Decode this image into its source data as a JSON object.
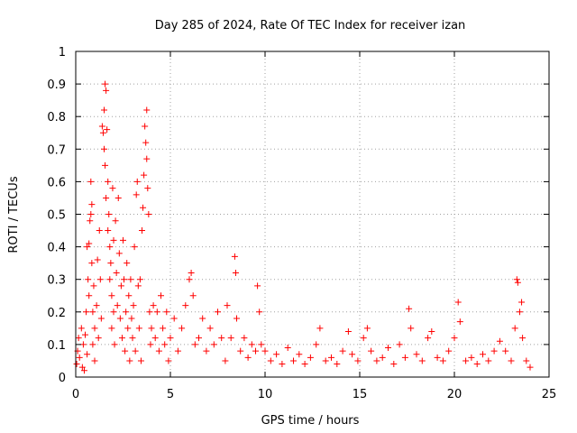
{
  "chart_data": {
    "type": "scatter",
    "title": "Day 285 of 2024, Rate Of TEC Index for receiver izan",
    "xlabel": "GPS time / hours",
    "ylabel": "ROTI / TECUs",
    "xlim": [
      0,
      25
    ],
    "ylim": [
      0,
      1
    ],
    "xticks": [
      0,
      5,
      10,
      15,
      20,
      25
    ],
    "xtick_labels": [
      "0",
      "5",
      "10",
      "15",
      "20",
      "25"
    ],
    "yticks": [
      0,
      0.1,
      0.2,
      0.3,
      0.4,
      0.5,
      0.6,
      0.7,
      0.8,
      0.9,
      1
    ],
    "ytick_labels": [
      "0",
      "0.1",
      "0.2",
      "0.3",
      "0.4",
      "0.5",
      "0.6",
      "0.7",
      "0.8",
      "0.9",
      "1"
    ],
    "grid": true,
    "marker": "plus",
    "series": [
      {
        "color": "#ff0000",
        "points": [
          [
            0.05,
            0.04
          ],
          [
            0.1,
            0.08
          ],
          [
            0.15,
            0.12
          ],
          [
            0.2,
            0.06
          ],
          [
            0.3,
            0.15
          ],
          [
            0.35,
            0.03
          ],
          [
            0.4,
            0.1
          ],
          [
            0.45,
            0.02
          ],
          [
            0.5,
            0.13
          ],
          [
            0.55,
            0.2
          ],
          [
            0.6,
            0.07
          ],
          [
            0.6,
            0.4
          ],
          [
            0.65,
            0.3
          ],
          [
            0.7,
            0.41
          ],
          [
            0.7,
            0.25
          ],
          [
            0.75,
            0.48
          ],
          [
            0.8,
            0.6
          ],
          [
            0.8,
            0.5
          ],
          [
            0.85,
            0.35
          ],
          [
            0.85,
            0.53
          ],
          [
            0.9,
            0.2
          ],
          [
            0.9,
            0.1
          ],
          [
            0.95,
            0.28
          ],
          [
            1.0,
            0.15
          ],
          [
            1.0,
            0.05
          ],
          [
            1.1,
            0.22
          ],
          [
            1.15,
            0.36
          ],
          [
            1.2,
            0.12
          ],
          [
            1.25,
            0.45
          ],
          [
            1.3,
            0.3
          ],
          [
            1.35,
            0.18
          ],
          [
            1.4,
            0.77
          ],
          [
            1.45,
            0.75
          ],
          [
            1.5,
            0.7
          ],
          [
            1.5,
            0.82
          ],
          [
            1.55,
            0.65
          ],
          [
            1.55,
            0.9
          ],
          [
            1.6,
            0.88
          ],
          [
            1.6,
            0.55
          ],
          [
            1.65,
            0.76
          ],
          [
            1.7,
            0.6
          ],
          [
            1.7,
            0.45
          ],
          [
            1.75,
            0.5
          ],
          [
            1.8,
            0.4
          ],
          [
            1.8,
            0.3
          ],
          [
            1.85,
            0.35
          ],
          [
            1.9,
            0.25
          ],
          [
            1.9,
            0.15
          ],
          [
            1.95,
            0.58
          ],
          [
            2.0,
            0.42
          ],
          [
            2.0,
            0.2
          ],
          [
            2.05,
            0.1
          ],
          [
            2.1,
            0.48
          ],
          [
            2.15,
            0.32
          ],
          [
            2.2,
            0.22
          ],
          [
            2.25,
            0.55
          ],
          [
            2.3,
            0.38
          ],
          [
            2.35,
            0.18
          ],
          [
            2.4,
            0.28
          ],
          [
            2.45,
            0.12
          ],
          [
            2.5,
            0.42
          ],
          [
            2.55,
            0.3
          ],
          [
            2.6,
            0.08
          ],
          [
            2.65,
            0.2
          ],
          [
            2.7,
            0.35
          ],
          [
            2.75,
            0.15
          ],
          [
            2.8,
            0.25
          ],
          [
            2.85,
            0.05
          ],
          [
            2.9,
            0.3
          ],
          [
            2.95,
            0.18
          ],
          [
            3.0,
            0.12
          ],
          [
            3.05,
            0.22
          ],
          [
            3.1,
            0.4
          ],
          [
            3.15,
            0.08
          ],
          [
            3.2,
            0.56
          ],
          [
            3.25,
            0.6
          ],
          [
            3.3,
            0.28
          ],
          [
            3.35,
            0.15
          ],
          [
            3.4,
            0.3
          ],
          [
            3.45,
            0.05
          ],
          [
            3.5,
            0.45
          ],
          [
            3.55,
            0.52
          ],
          [
            3.6,
            0.62
          ],
          [
            3.65,
            0.77
          ],
          [
            3.7,
            0.72
          ],
          [
            3.75,
            0.82
          ],
          [
            3.75,
            0.67
          ],
          [
            3.8,
            0.58
          ],
          [
            3.85,
            0.5
          ],
          [
            3.9,
            0.2
          ],
          [
            3.95,
            0.1
          ],
          [
            4.0,
            0.15
          ],
          [
            4.1,
            0.22
          ],
          [
            4.2,
            0.12
          ],
          [
            4.3,
            0.2
          ],
          [
            4.4,
            0.08
          ],
          [
            4.5,
            0.25
          ],
          [
            4.6,
            0.15
          ],
          [
            4.7,
            0.1
          ],
          [
            4.8,
            0.2
          ],
          [
            4.9,
            0.05
          ],
          [
            5.0,
            0.12
          ],
          [
            5.2,
            0.18
          ],
          [
            5.4,
            0.08
          ],
          [
            5.6,
            0.15
          ],
          [
            5.8,
            0.22
          ],
          [
            6.0,
            0.3
          ],
          [
            6.1,
            0.32
          ],
          [
            6.2,
            0.25
          ],
          [
            6.3,
            0.1
          ],
          [
            6.5,
            0.12
          ],
          [
            6.7,
            0.18
          ],
          [
            6.9,
            0.08
          ],
          [
            7.1,
            0.15
          ],
          [
            7.3,
            0.1
          ],
          [
            7.5,
            0.2
          ],
          [
            7.7,
            0.12
          ],
          [
            7.9,
            0.05
          ],
          [
            8.0,
            0.22
          ],
          [
            8.2,
            0.12
          ],
          [
            8.4,
            0.37
          ],
          [
            8.45,
            0.32
          ],
          [
            8.5,
            0.18
          ],
          [
            8.7,
            0.08
          ],
          [
            8.9,
            0.12
          ],
          [
            9.1,
            0.06
          ],
          [
            9.3,
            0.1
          ],
          [
            9.5,
            0.08
          ],
          [
            9.6,
            0.28
          ],
          [
            9.7,
            0.2
          ],
          [
            9.8,
            0.1
          ],
          [
            10.0,
            0.08
          ],
          [
            10.3,
            0.05
          ],
          [
            10.6,
            0.07
          ],
          [
            10.9,
            0.04
          ],
          [
            11.2,
            0.09
          ],
          [
            11.5,
            0.05
          ],
          [
            11.8,
            0.07
          ],
          [
            12.1,
            0.04
          ],
          [
            12.4,
            0.06
          ],
          [
            12.7,
            0.1
          ],
          [
            12.9,
            0.15
          ],
          [
            13.2,
            0.05
          ],
          [
            13.5,
            0.06
          ],
          [
            13.8,
            0.04
          ],
          [
            14.1,
            0.08
          ],
          [
            14.4,
            0.14
          ],
          [
            14.6,
            0.07
          ],
          [
            14.9,
            0.05
          ],
          [
            15.2,
            0.12
          ],
          [
            15.4,
            0.15
          ],
          [
            15.6,
            0.08
          ],
          [
            15.9,
            0.05
          ],
          [
            16.2,
            0.06
          ],
          [
            16.5,
            0.09
          ],
          [
            16.8,
            0.04
          ],
          [
            17.1,
            0.1
          ],
          [
            17.4,
            0.06
          ],
          [
            17.6,
            0.21
          ],
          [
            17.7,
            0.15
          ],
          [
            18.0,
            0.07
          ],
          [
            18.3,
            0.05
          ],
          [
            18.6,
            0.12
          ],
          [
            18.8,
            0.14
          ],
          [
            19.1,
            0.06
          ],
          [
            19.4,
            0.05
          ],
          [
            19.7,
            0.08
          ],
          [
            20.0,
            0.12
          ],
          [
            20.2,
            0.23
          ],
          [
            20.3,
            0.17
          ],
          [
            20.6,
            0.05
          ],
          [
            20.9,
            0.06
          ],
          [
            21.2,
            0.04
          ],
          [
            21.5,
            0.07
          ],
          [
            21.8,
            0.05
          ],
          [
            22.1,
            0.08
          ],
          [
            22.4,
            0.11
          ],
          [
            22.7,
            0.08
          ],
          [
            23.0,
            0.05
          ],
          [
            23.2,
            0.15
          ],
          [
            23.3,
            0.3
          ],
          [
            23.35,
            0.29
          ],
          [
            23.45,
            0.2
          ],
          [
            23.55,
            0.23
          ],
          [
            23.6,
            0.12
          ],
          [
            23.8,
            0.05
          ],
          [
            24.0,
            0.03
          ]
        ]
      }
    ]
  }
}
